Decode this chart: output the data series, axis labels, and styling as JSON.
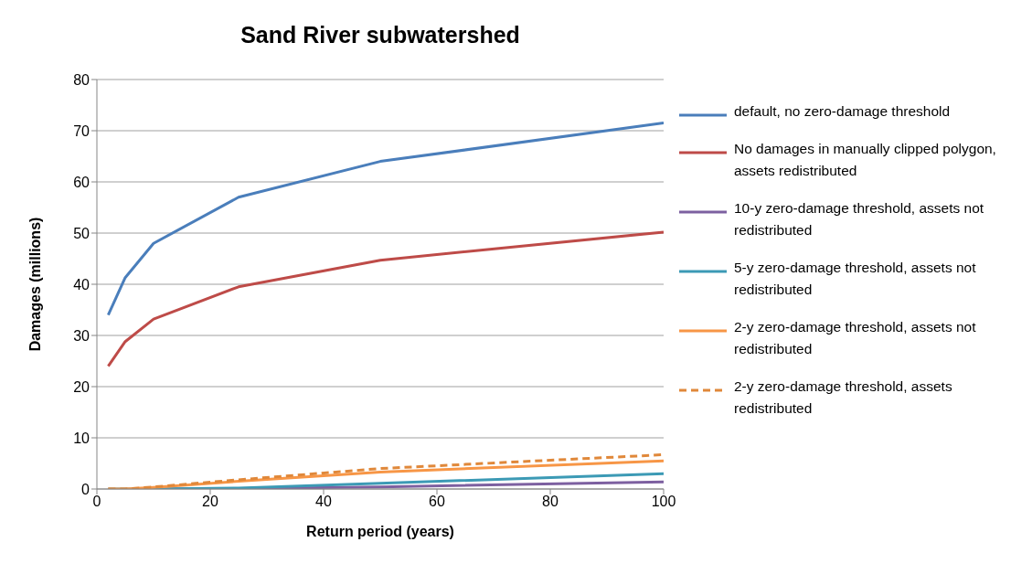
{
  "chart_data": {
    "type": "line",
    "title": "Sand River subwatershed",
    "xlabel": "Return period (years)",
    "ylabel": "Damages (millions)",
    "x": [
      2,
      5,
      10,
      25,
      50,
      100
    ],
    "series": [
      {
        "name": "default, no zero-damage threshold",
        "color": "#4a7ebb",
        "values": [
          34,
          41.3,
          48,
          57,
          64,
          71.5
        ]
      },
      {
        "name": "No damages in manually clipped polygon, assets redistributed",
        "color": "#be4b48",
        "values": [
          24,
          28.8,
          33.2,
          39.5,
          44.7,
          50.2
        ]
      },
      {
        "name": "10-y zero-damage threshold, assets not redistributed",
        "color": "#7d60a0",
        "values": [
          null,
          null,
          0,
          0.1,
          0.4,
          1.4
        ]
      },
      {
        "name": "5-y zero-damage threshold, assets not redistributed",
        "color": "#3c9ab5",
        "values": [
          0,
          0,
          0,
          0.2,
          1.1,
          3
        ]
      },
      {
        "name": "2-y zero-damage threshold, assets not redistributed",
        "color": "#f79646",
        "values": [
          0,
          0,
          0.3,
          1.5,
          3.3,
          5.5
        ]
      },
      {
        "name": "2-y zero-damage threshold, assets redistributed",
        "color": "#e0883a",
        "values": [
          0,
          0,
          0.4,
          1.8,
          4,
          6.7
        ],
        "line_style": "dashed"
      }
    ],
    "xlim": [
      0,
      100
    ],
    "xticks": [
      0,
      20,
      40,
      60,
      80,
      100
    ],
    "ylim": [
      0,
      80
    ],
    "yticks": [
      0,
      10,
      20,
      30,
      40,
      50,
      60,
      70,
      80
    ],
    "grid": "y",
    "legend": "right",
    "marker": "none",
    "line_style": "solid"
  }
}
